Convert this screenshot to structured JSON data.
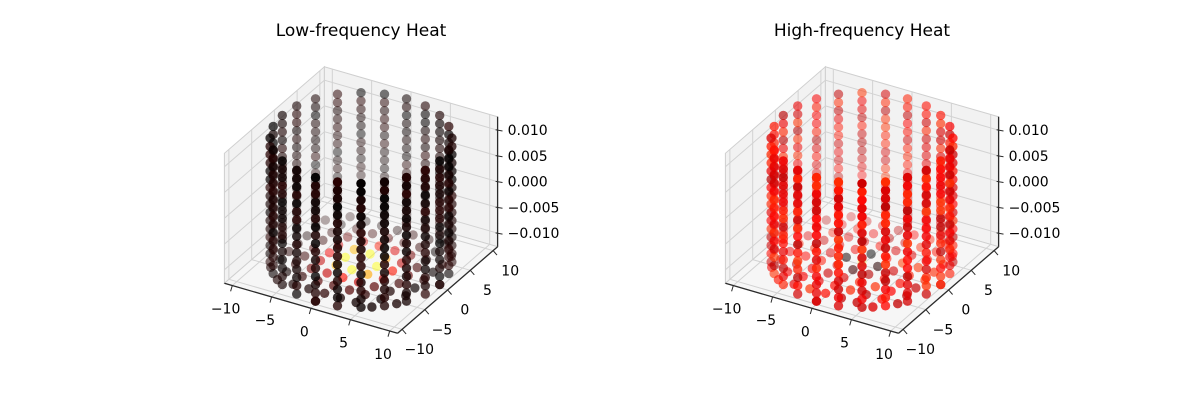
{
  "figure": {
    "background": "#ffffff"
  },
  "chart_data": [
    {
      "type": "scatter",
      "projection": "3d",
      "title": "Low-frequency Heat",
      "colormap": "hot",
      "view": {
        "elev": 30,
        "azim": -60
      },
      "geometry": {
        "shape": "cylinder-point-cloud",
        "radius": 10,
        "wall_angles": 24,
        "wall_levels": 16,
        "z_half": 0.012,
        "disk_grid_step": 2,
        "disk_location": "bottom"
      },
      "axes": {
        "xlim": [
          -11,
          11
        ],
        "ylim": [
          -11,
          11
        ],
        "zlim": [
          -0.0126,
          0.0126
        ],
        "xtick_values": [
          -10,
          -5,
          0,
          5,
          10
        ],
        "xtick_labels": [
          "−10",
          "−5",
          "0",
          "5",
          "10"
        ],
        "ytick_values": [
          -10,
          -5,
          0,
          5,
          10
        ],
        "ytick_labels": [
          "−10",
          "−5",
          "0",
          "5",
          "10"
        ],
        "ztick_values": [
          -0.01,
          -0.005,
          0,
          0.005,
          0.01
        ],
        "ztick_labels": [
          "−0.010",
          "−0.005",
          "0.000",
          "0.005",
          "0.010"
        ]
      },
      "heat": {
        "model": "gaussian_spot",
        "description": "hot spot at bottom-disk center: white core, yellow ring, red, fading to black walls",
        "sigma_sq": 15.2,
        "noise": 0.055,
        "seed": 42
      },
      "style": {
        "pane": "#f2f2f2",
        "floor": "#f6f6f6",
        "grid": "#d2d2d2",
        "pane_edge": "#cfcfcf",
        "spine": "#2b2b2b",
        "tick_text": "#000000"
      }
    },
    {
      "type": "scatter",
      "projection": "3d",
      "title": "High-frequency Heat",
      "colormap": "hot",
      "view": {
        "elev": 30,
        "azim": -60
      },
      "geometry": {
        "shape": "cylinder-point-cloud",
        "radius": 10,
        "wall_angles": 24,
        "wall_levels": 16,
        "z_half": 0.012,
        "disk_grid_step": 2,
        "disk_location": "bottom"
      },
      "axes": {
        "xlim": [
          -11,
          11
        ],
        "ylim": [
          -11,
          11
        ],
        "zlim": [
          -0.0126,
          0.0126
        ],
        "xtick_values": [
          -10,
          -5,
          0,
          5,
          10
        ],
        "xtick_labels": [
          "−10",
          "−5",
          "0",
          "5",
          "10"
        ],
        "ytick_values": [
          -10,
          -5,
          0,
          5,
          10
        ],
        "ytick_labels": [
          "−10",
          "−5",
          "0",
          "5",
          "10"
        ],
        "ztick_values": [
          -0.01,
          -0.005,
          0,
          0.005,
          0.01
        ],
        "ztick_labels": [
          "−0.010",
          "−0.005",
          "0.000",
          "0.005",
          "0.010"
        ]
      },
      "heat": {
        "model": "radial_wave",
        "description": "mostly red body; oscillation at bottom-disk center: pale core, black ring, back to red",
        "base": 0.35,
        "amp": 0.6,
        "half_wavelength": 2,
        "sigma_sq": 6,
        "noise": 0.09,
        "seed": 7
      },
      "style": {
        "pane": "#f2f2f2",
        "floor": "#f6f6f6",
        "grid": "#d2d2d2",
        "pane_edge": "#cfcfcf",
        "spine": "#2b2b2b",
        "tick_text": "#000000"
      }
    }
  ]
}
